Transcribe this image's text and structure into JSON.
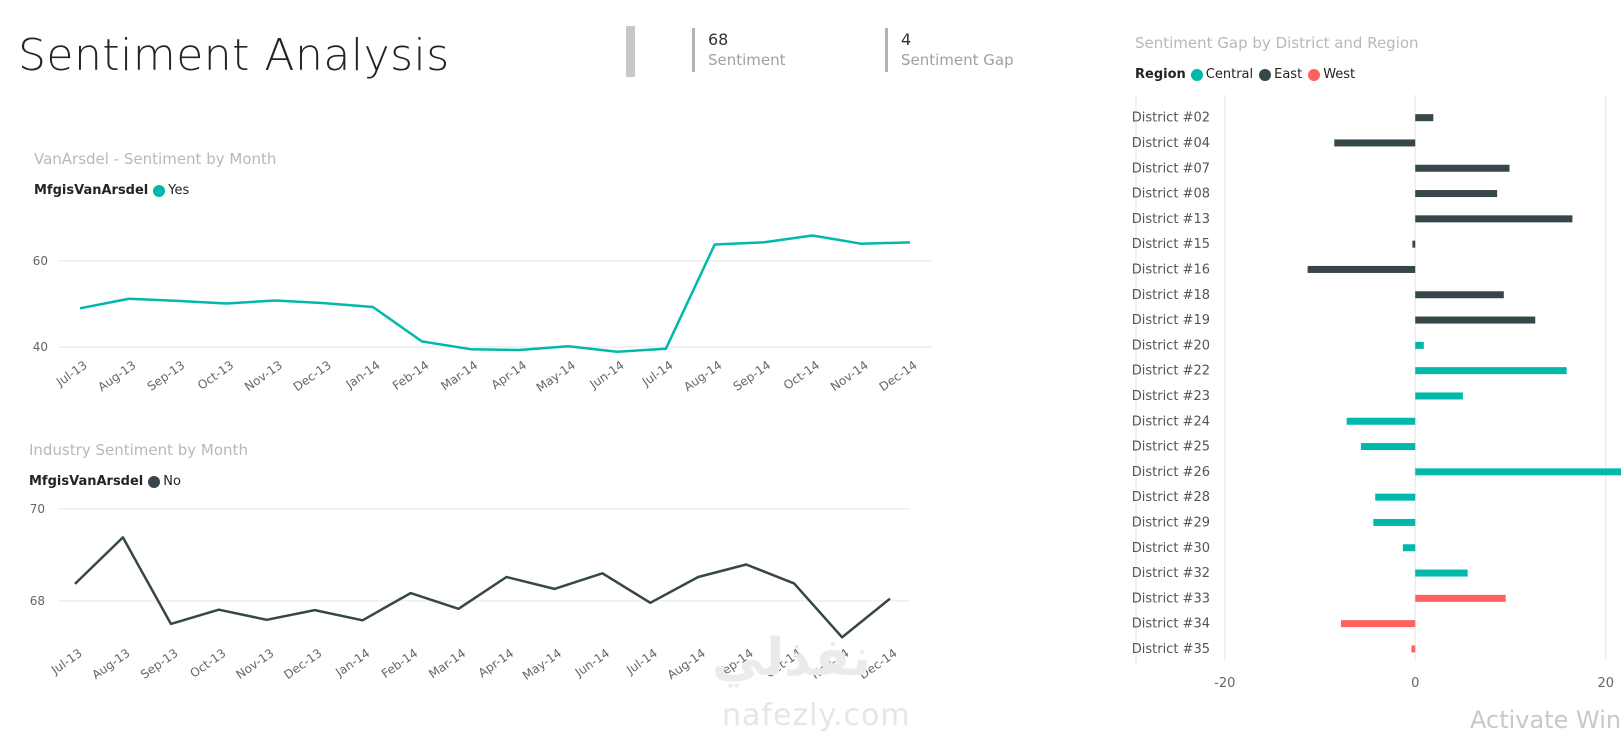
{
  "header": {
    "title": "Sentiment Analysis",
    "cards": [
      {
        "value": "68",
        "label": "Sentiment"
      },
      {
        "value": "4",
        "label": "Sentiment Gap"
      }
    ]
  },
  "colors": {
    "central": "#01b8aa",
    "east": "#374649",
    "west": "#fd625e",
    "title_gray": "#b8b8b8",
    "grid": "#e6e6e6"
  },
  "chart_data": [
    {
      "type": "line",
      "title": "VanArsdel - Sentiment by Month",
      "legend_title": "MfgisVanArsdel",
      "legend_position": "top-left",
      "grid": true,
      "categories": [
        "Jul-13",
        "Aug-13",
        "Sep-13",
        "Oct-13",
        "Nov-13",
        "Dec-13",
        "Jan-14",
        "Feb-14",
        "Mar-14",
        "Apr-14",
        "May-14",
        "Jun-14",
        "Jul-14",
        "Aug-14",
        "Sep-14",
        "Oct-14",
        "Nov-14",
        "Dec-14"
      ],
      "series": [
        {
          "name": "Yes",
          "color": "#01b8aa",
          "values": [
            49.0,
            51.2,
            50.7,
            50.1,
            50.8,
            50.2,
            49.3,
            41.3,
            39.5,
            39.3,
            40.2,
            38.9,
            39.6,
            63.8,
            64.3,
            65.9,
            64.0,
            64.3
          ]
        }
      ],
      "yticks": [
        40,
        60
      ],
      "ylim": [
        33.5,
        69.5
      ]
    },
    {
      "type": "line",
      "title": "Industry Sentiment by Month",
      "legend_title": "MfgisVanArsdel",
      "legend_position": "top-left",
      "grid": true,
      "categories": [
        "Jul-13",
        "Aug-13",
        "Sep-13",
        "Oct-13",
        "Nov-13",
        "Dec-13",
        "Jan-14",
        "Feb-14",
        "Mar-14",
        "Apr-14",
        "May-14",
        "Jun-14",
        "Jul-14",
        "Aug-14",
        "Sep-14",
        "Oct-14",
        "Nov-14",
        "Dec-14"
      ],
      "series": [
        {
          "name": "No",
          "color": "#374649",
          "values": [
            68.37,
            69.38,
            67.5,
            67.81,
            67.59,
            67.8,
            67.58,
            68.17,
            67.83,
            68.52,
            68.26,
            68.6,
            67.96,
            68.52,
            68.79,
            68.38,
            67.21,
            68.05
          ]
        }
      ],
      "yticks": [
        68,
        70
      ],
      "ylim": [
        66.5,
        70.3
      ]
    },
    {
      "type": "bar",
      "orientation": "horizontal",
      "title": "Sentiment Gap by District and Region",
      "legend_title": "Region",
      "legend_position": "top-left",
      "legend": [
        {
          "name": "Central",
          "color": "#01b8aa"
        },
        {
          "name": "East",
          "color": "#374649"
        },
        {
          "name": "West",
          "color": "#fd625e"
        }
      ],
      "grid": true,
      "xticks": [
        -20,
        0,
        20
      ],
      "xlim": [
        -20.5,
        21.5
      ],
      "bars": [
        {
          "category": "District #02",
          "region": "East",
          "value": 1.9
        },
        {
          "category": "District #04",
          "region": "East",
          "value": -8.5
        },
        {
          "category": "District #07",
          "region": "East",
          "value": 9.9
        },
        {
          "category": "District #08",
          "region": "East",
          "value": 8.6
        },
        {
          "category": "District #13",
          "region": "East",
          "value": 16.5
        },
        {
          "category": "District #15",
          "region": "East",
          "value": -0.3
        },
        {
          "category": "District #16",
          "region": "East",
          "value": -11.3
        },
        {
          "category": "District #18",
          "region": "East",
          "value": 9.3
        },
        {
          "category": "District #19",
          "region": "East",
          "value": 12.6
        },
        {
          "category": "District #20",
          "region": "Central",
          "value": 0.9
        },
        {
          "category": "District #22",
          "region": "Central",
          "value": 15.9
        },
        {
          "category": "District #23",
          "region": "Central",
          "value": 5.0
        },
        {
          "category": "District #24",
          "region": "Central",
          "value": -7.2
        },
        {
          "category": "District #25",
          "region": "Central",
          "value": -5.7
        },
        {
          "category": "District #26",
          "region": "Central",
          "value": 23.4
        },
        {
          "category": "District #28",
          "region": "Central",
          "value": -4.2
        },
        {
          "category": "District #29",
          "region": "Central",
          "value": -4.4
        },
        {
          "category": "District #30",
          "region": "Central",
          "value": -1.3
        },
        {
          "category": "District #32",
          "region": "Central",
          "value": 5.5
        },
        {
          "category": "District #33",
          "region": "West",
          "value": 9.5
        },
        {
          "category": "District #34",
          "region": "West",
          "value": -7.8
        },
        {
          "category": "District #35",
          "region": "West",
          "value": -0.4
        }
      ]
    }
  ],
  "watermark": {
    "arabic": "نفذلي",
    "latin": "nafezly.com"
  },
  "system_overlay": {
    "activate_text": "Activate Wind"
  }
}
